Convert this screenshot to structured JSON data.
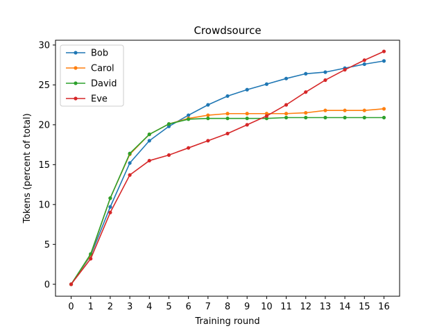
{
  "chart_data": {
    "type": "line",
    "title": "Crowdsource",
    "xlabel": "Training round",
    "ylabel": "Tokens (percent of total)",
    "x": [
      0,
      1,
      2,
      3,
      4,
      5,
      6,
      7,
      8,
      9,
      10,
      11,
      12,
      13,
      14,
      15,
      16
    ],
    "xlim": [
      -0.8,
      16.8
    ],
    "ylim": [
      -1.5,
      30.6
    ],
    "xticks": [
      0,
      1,
      2,
      3,
      4,
      5,
      6,
      7,
      8,
      9,
      10,
      11,
      12,
      13,
      14,
      15,
      16
    ],
    "yticks": [
      0,
      5,
      10,
      15,
      20,
      25,
      30
    ],
    "grid": false,
    "legend_position": "top-left",
    "series": [
      {
        "name": "Bob",
        "color": "#1f77b4",
        "values": [
          0,
          3.6,
          9.7,
          15.2,
          18.0,
          19.8,
          21.2,
          22.5,
          23.6,
          24.4,
          25.1,
          25.8,
          26.4,
          26.6,
          27.1,
          27.6,
          28.0
        ]
      },
      {
        "name": "Carol",
        "color": "#ff7f0e",
        "values": [
          0,
          3.7,
          10.8,
          16.3,
          18.8,
          20.1,
          20.8,
          21.2,
          21.4,
          21.4,
          21.4,
          21.4,
          21.5,
          21.8,
          21.8,
          21.8,
          22.0
        ]
      },
      {
        "name": "David",
        "color": "#2ca02c",
        "values": [
          0,
          3.8,
          10.8,
          16.4,
          18.8,
          20.1,
          20.7,
          20.8,
          20.8,
          20.8,
          20.8,
          20.9,
          20.9,
          20.9,
          20.9,
          20.9,
          20.9
        ]
      },
      {
        "name": "Eve",
        "color": "#d62728",
        "values": [
          0,
          3.2,
          9.0,
          13.7,
          15.5,
          16.2,
          17.1,
          18.0,
          18.9,
          20.0,
          21.1,
          22.5,
          24.1,
          25.6,
          26.9,
          28.1,
          29.2
        ]
      }
    ]
  }
}
